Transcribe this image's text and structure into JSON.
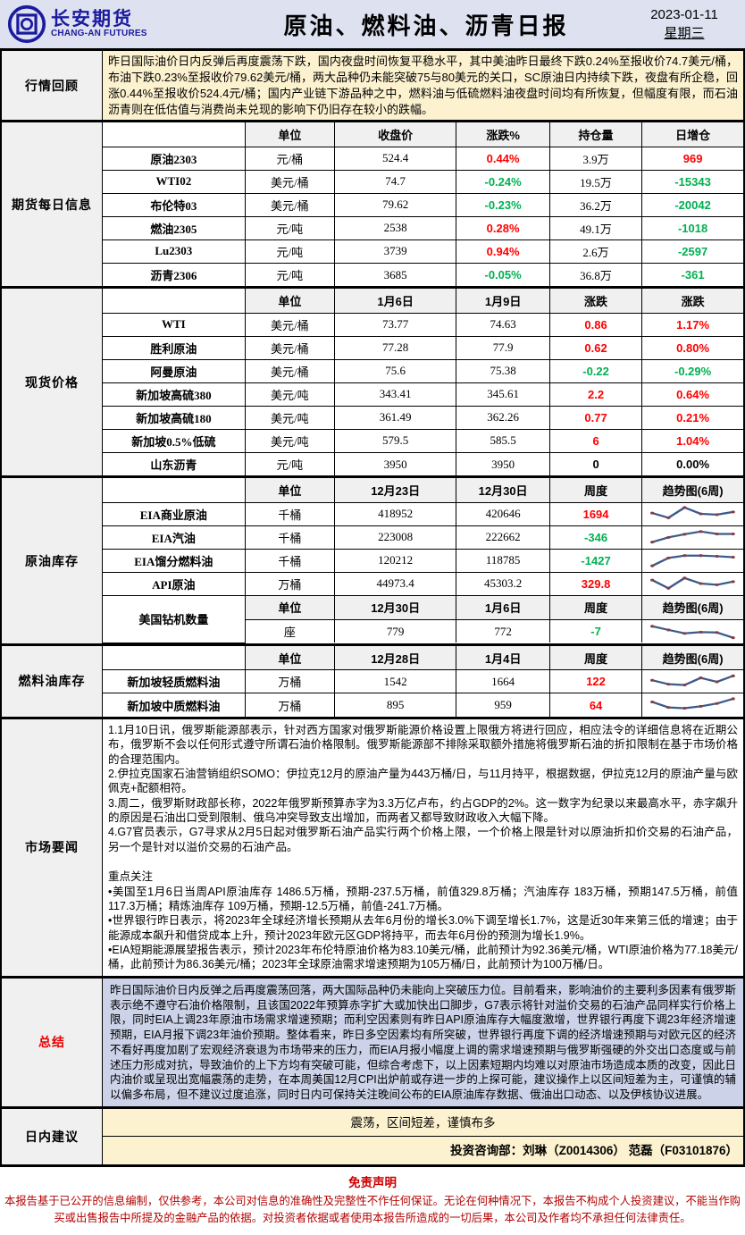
{
  "header": {
    "brand_cn": "长安期货",
    "brand_en": "CHANG-AN FUTURES",
    "title": "原油、燃料油、沥青日报",
    "date": "2023-01-11",
    "weekday": "星期三"
  },
  "icons": {
    "logo": "changan-coin-emblem"
  },
  "colors": {
    "up_red": "#ff0000",
    "down_green": "#00b050",
    "brand_blue": "#1b1b9e",
    "header_bg": "#dde1f0",
    "review_bg": "#fdf2cf",
    "summary_bg": "#ccd3e8",
    "advice_bg": "#fdf2cf",
    "disclaimer_red": "#b30303",
    "spark_line": "#3a5b8c",
    "spark_dot": "#8d3a3f"
  },
  "sections": {
    "review": {
      "label": "行情回顾",
      "text": "昨日国际油价日内反弹后再度震荡下跌，国内夜盘时间恢复平稳水平，其中美油昨日最终下跌0.24%至报收价74.7美元/桶，布油下跌0.23%至报收价79.62美元/桶，两大品种仍未能突破75与80美元的关口，SC原油日内持续下跌，夜盘有所企稳，回涨0.44%至报收价524.4元/桶；国内产业链下游品种之中，燃料油与低硫燃料油夜盘时间均有所恢复，但幅度有限，而石油沥青则在低估值与消费尚未兑现的影响下仍旧存在较小的跌幅。"
    },
    "futures": {
      "label": "期货每日信息",
      "headers": [
        "",
        "单位",
        "收盘价",
        "涨跌%",
        "持仓量",
        "日增仓"
      ],
      "rows": [
        {
          "cells": [
            "原油2303",
            "元/桶",
            "524.4",
            "0.44%",
            "3.9万",
            "969"
          ],
          "colors": [
            "",
            "",
            "",
            "red",
            "",
            "red"
          ]
        },
        {
          "cells": [
            "WTI02",
            "美元/桶",
            "74.7",
            "-0.24%",
            "19.5万",
            "-15343"
          ],
          "colors": [
            "",
            "",
            "",
            "green",
            "",
            "green"
          ]
        },
        {
          "cells": [
            "布伦特03",
            "美元/桶",
            "79.62",
            "-0.23%",
            "36.2万",
            "-20042"
          ],
          "colors": [
            "",
            "",
            "",
            "green",
            "",
            "green"
          ]
        },
        {
          "cells": [
            "燃油2305",
            "元/吨",
            "2538",
            "0.28%",
            "49.1万",
            "-1018"
          ],
          "colors": [
            "",
            "",
            "",
            "red",
            "",
            "green"
          ]
        },
        {
          "cells": [
            "Lu2303",
            "元/吨",
            "3739",
            "0.94%",
            "2.6万",
            "-2597"
          ],
          "colors": [
            "",
            "",
            "",
            "red",
            "",
            "green"
          ]
        },
        {
          "cells": [
            "沥青2306",
            "元/吨",
            "3685",
            "-0.05%",
            "36.8万",
            "-361"
          ],
          "colors": [
            "",
            "",
            "",
            "green",
            "",
            "green"
          ]
        }
      ]
    },
    "spot": {
      "label": "现货价格",
      "headers": [
        "",
        "单位",
        "1月6日",
        "1月9日",
        "涨跌",
        "涨跌"
      ],
      "rows": [
        {
          "cells": [
            "WTI",
            "美元/桶",
            "73.77",
            "74.63",
            "0.86",
            "1.17%"
          ],
          "colors": [
            "",
            "",
            "",
            "",
            "red",
            "red"
          ]
        },
        {
          "cells": [
            "胜利原油",
            "美元/桶",
            "77.28",
            "77.9",
            "0.62",
            "0.80%"
          ],
          "colors": [
            "",
            "",
            "",
            "",
            "red",
            "red"
          ]
        },
        {
          "cells": [
            "阿曼原油",
            "美元/桶",
            "75.6",
            "75.38",
            "-0.22",
            "-0.29%"
          ],
          "colors": [
            "",
            "",
            "",
            "",
            "green",
            "green"
          ]
        },
        {
          "cells": [
            "新加坡高硫380",
            "美元/吨",
            "343.41",
            "345.61",
            "2.2",
            "0.64%"
          ],
          "colors": [
            "",
            "",
            "",
            "",
            "red",
            "red"
          ]
        },
        {
          "cells": [
            "新加坡高硫180",
            "美元/吨",
            "361.49",
            "362.26",
            "0.77",
            "0.21%"
          ],
          "colors": [
            "",
            "",
            "",
            "",
            "red",
            "red"
          ]
        },
        {
          "cells": [
            "新加坡0.5%低硫",
            "美元/吨",
            "579.5",
            "585.5",
            "6",
            "1.04%"
          ],
          "colors": [
            "",
            "",
            "",
            "",
            "red",
            "red"
          ]
        },
        {
          "cells": [
            "山东沥青",
            "元/吨",
            "3950",
            "3950",
            "0",
            "0.00%"
          ],
          "colors": [
            "",
            "",
            "",
            "",
            "bold",
            "bold"
          ]
        }
      ]
    },
    "inventory": {
      "label": "原油库存",
      "headers": [
        "",
        "单位",
        "12月23日",
        "12月30日",
        "周度",
        "趋势图(6周)"
      ],
      "rows": [
        {
          "cells": [
            "EIA商业原油",
            "千桶",
            "418952",
            "420646",
            "1694",
            ""
          ],
          "colors": [
            "",
            "",
            "",
            "",
            "red",
            ""
          ],
          "trend": [
            55,
            25,
            90,
            50,
            45,
            62
          ]
        },
        {
          "cells": [
            "EIA汽油",
            "千桶",
            "223008",
            "222662",
            "-346",
            ""
          ],
          "colors": [
            "",
            "",
            "",
            "",
            "green",
            ""
          ],
          "trend": [
            18,
            48,
            68,
            85,
            70,
            70
          ]
        },
        {
          "cells": [
            "EIA馏分燃料油",
            "千桶",
            "120212",
            "118785",
            "-1427",
            ""
          ],
          "colors": [
            "",
            "",
            "",
            "",
            "green",
            ""
          ],
          "trend": [
            15,
            65,
            80,
            80,
            76,
            70
          ]
        },
        {
          "cells": [
            "API原油",
            "万桶",
            "44973.4",
            "45303.2",
            "329.8",
            ""
          ],
          "colors": [
            "",
            "",
            "",
            "",
            "red",
            ""
          ],
          "trend": [
            72,
            20,
            85,
            50,
            42,
            62
          ]
        }
      ],
      "rig": {
        "name": "美国钻机数量",
        "headers": [
          "单位",
          "12月30日",
          "1月6日",
          "周度",
          "趋势图(6周)"
        ],
        "row": {
          "cells": [
            "座",
            "779",
            "772",
            "-7",
            ""
          ],
          "colors": [
            "",
            "",
            "",
            "green",
            ""
          ],
          "trend": [
            85,
            62,
            40,
            48,
            46,
            12
          ]
        }
      }
    },
    "fuel": {
      "label": "燃料油库存",
      "headers": [
        "",
        "单位",
        "12月28日",
        "1月4日",
        "周度",
        "趋势图(6周)"
      ],
      "rows": [
        {
          "cells": [
            "新加坡轻质燃料油",
            "万桶",
            "1542",
            "1664",
            "122",
            ""
          ],
          "colors": [
            "",
            "",
            "",
            "",
            "red",
            ""
          ],
          "trend": [
            60,
            35,
            30,
            75,
            50,
            88
          ]
        },
        {
          "cells": [
            "新加坡中质燃料油",
            "万桶",
            "895",
            "959",
            "64",
            ""
          ],
          "colors": [
            "",
            "",
            "",
            "",
            "red",
            ""
          ],
          "trend": [
            70,
            35,
            30,
            42,
            60,
            90
          ]
        }
      ]
    },
    "news": {
      "label": "市场要闻",
      "paragraphs": [
        "1.1月10日讯，俄罗斯能源部表示，针对西方国家对俄罗斯能源价格设置上限俄方将进行回应，相应法令的详细信息将在近期公布，俄罗斯不会以任何形式遵守所谓石油价格限制。俄罗斯能源部不排除采取额外措施将俄罗斯石油的折扣限制在基于市场价格的合理范围内。",
        "2.伊拉克国家石油营销组织SOMO：伊拉克12月的原油产量为443万桶/日，与11月持平，根据数据，伊拉克12月的原油产量与欧佩克+配额相符。",
        "3.周二，俄罗斯财政部长称，2022年俄罗斯预算赤字为3.3万亿卢布，约占GDP的2%。这一数字为纪录以来最高水平，赤字飙升的原因是石油出口受到限制、俄乌冲突导致支出增加，而两者又都导致财政收入大幅下降。",
        "4.G7官员表示，G7寻求从2月5日起对俄罗斯石油产品实行两个价格上限，一个价格上限是针对以原油折扣价交易的石油产品，另一个是针对以溢价交易的石油产品。"
      ],
      "focus_title": "重点关注",
      "focus": [
        "•美国至1月6日当周API原油库存 1486.5万桶，预期-237.5万桶，前值329.8万桶；汽油库存 183万桶，预期147.5万桶，前值117.3万桶；精炼油库存 109万桶，预期-12.5万桶，前值-241.7万桶。",
        "•世界银行昨日表示，将2023年全球经济增长预期从去年6月份的增长3.0%下调至增长1.7%，这是近30年来第三低的增速；由于能源成本飙升和借贷成本上升，预计2023年欧元区GDP将持平，而去年6月份的预测为增长1.9%。",
        "•EIA短期能源展望报告表示，预计2023年布伦特原油价格为83.10美元/桶，此前预计为92.36美元/桶，WTI原油价格为77.18美元/桶，此前预计为86.36美元/桶；2023年全球原油需求增速预期为105万桶/日，此前预计为100万桶/日。"
      ]
    },
    "summary": {
      "label": "总结",
      "text": "昨日国际油价日内反弹之后再度震荡回落，两大国际品种仍未能向上突破压力位。目前看来，影响油价的主要利多因素有俄罗斯表示绝不遵守石油价格限制，且该国2022年预算赤字扩大或加快出口脚步，G7表示将针对溢价交易的石油产品同样实行价格上限，同时EIA上调23年原油市场需求增速预期；而利空因素则有昨日API原油库存大幅度激增，世界银行再度下调23年经济增速预期，EIA月报下调23年油价预期。整体看来，昨日多空因素均有所突破，世界银行再度下调的经济增速预期与对欧元区的经济不看好再度加剧了宏观经济衰退为市场带来的压力，而EIA月报小幅度上调的需求增速预期与俄罗斯强硬的外交出口态度或与前述压力形成对抗，导致油价的上下方均有突破可能，但综合考虑下，以上因素短期内均难以对原油市场造成本质的改变，因此日内油价或呈现出宽幅震荡的走势，在本周美国12月CPI出炉前或存进一步的上探可能，建议操作上以区间短差为主，可谨慎的辅以偏多布局，但不建议过度追涨，同时日内可保持关注晚间公布的EIA原油库存数据、俄油出口动态、以及伊核协议进展。"
    },
    "advice": {
      "label": "日内建议",
      "line1": "震荡，区间短差，谨慎布多",
      "line2": "投资咨询部：刘琳（Z0014306） 范磊（F03101876）"
    }
  },
  "disclaimer": {
    "title": "免责声明",
    "text": "本报告基于已公开的信息编制，仅供参考，本公司对信息的准确性及完整性不作任何保证。无论在何种情况下，本报告不构成个人投资建议，不能当作购买或出售报告中所提及的金融产品的依据。对投资者依据或者使用本报告所造成的一切后果，本公司及作者均不承担任何法律责任。"
  }
}
